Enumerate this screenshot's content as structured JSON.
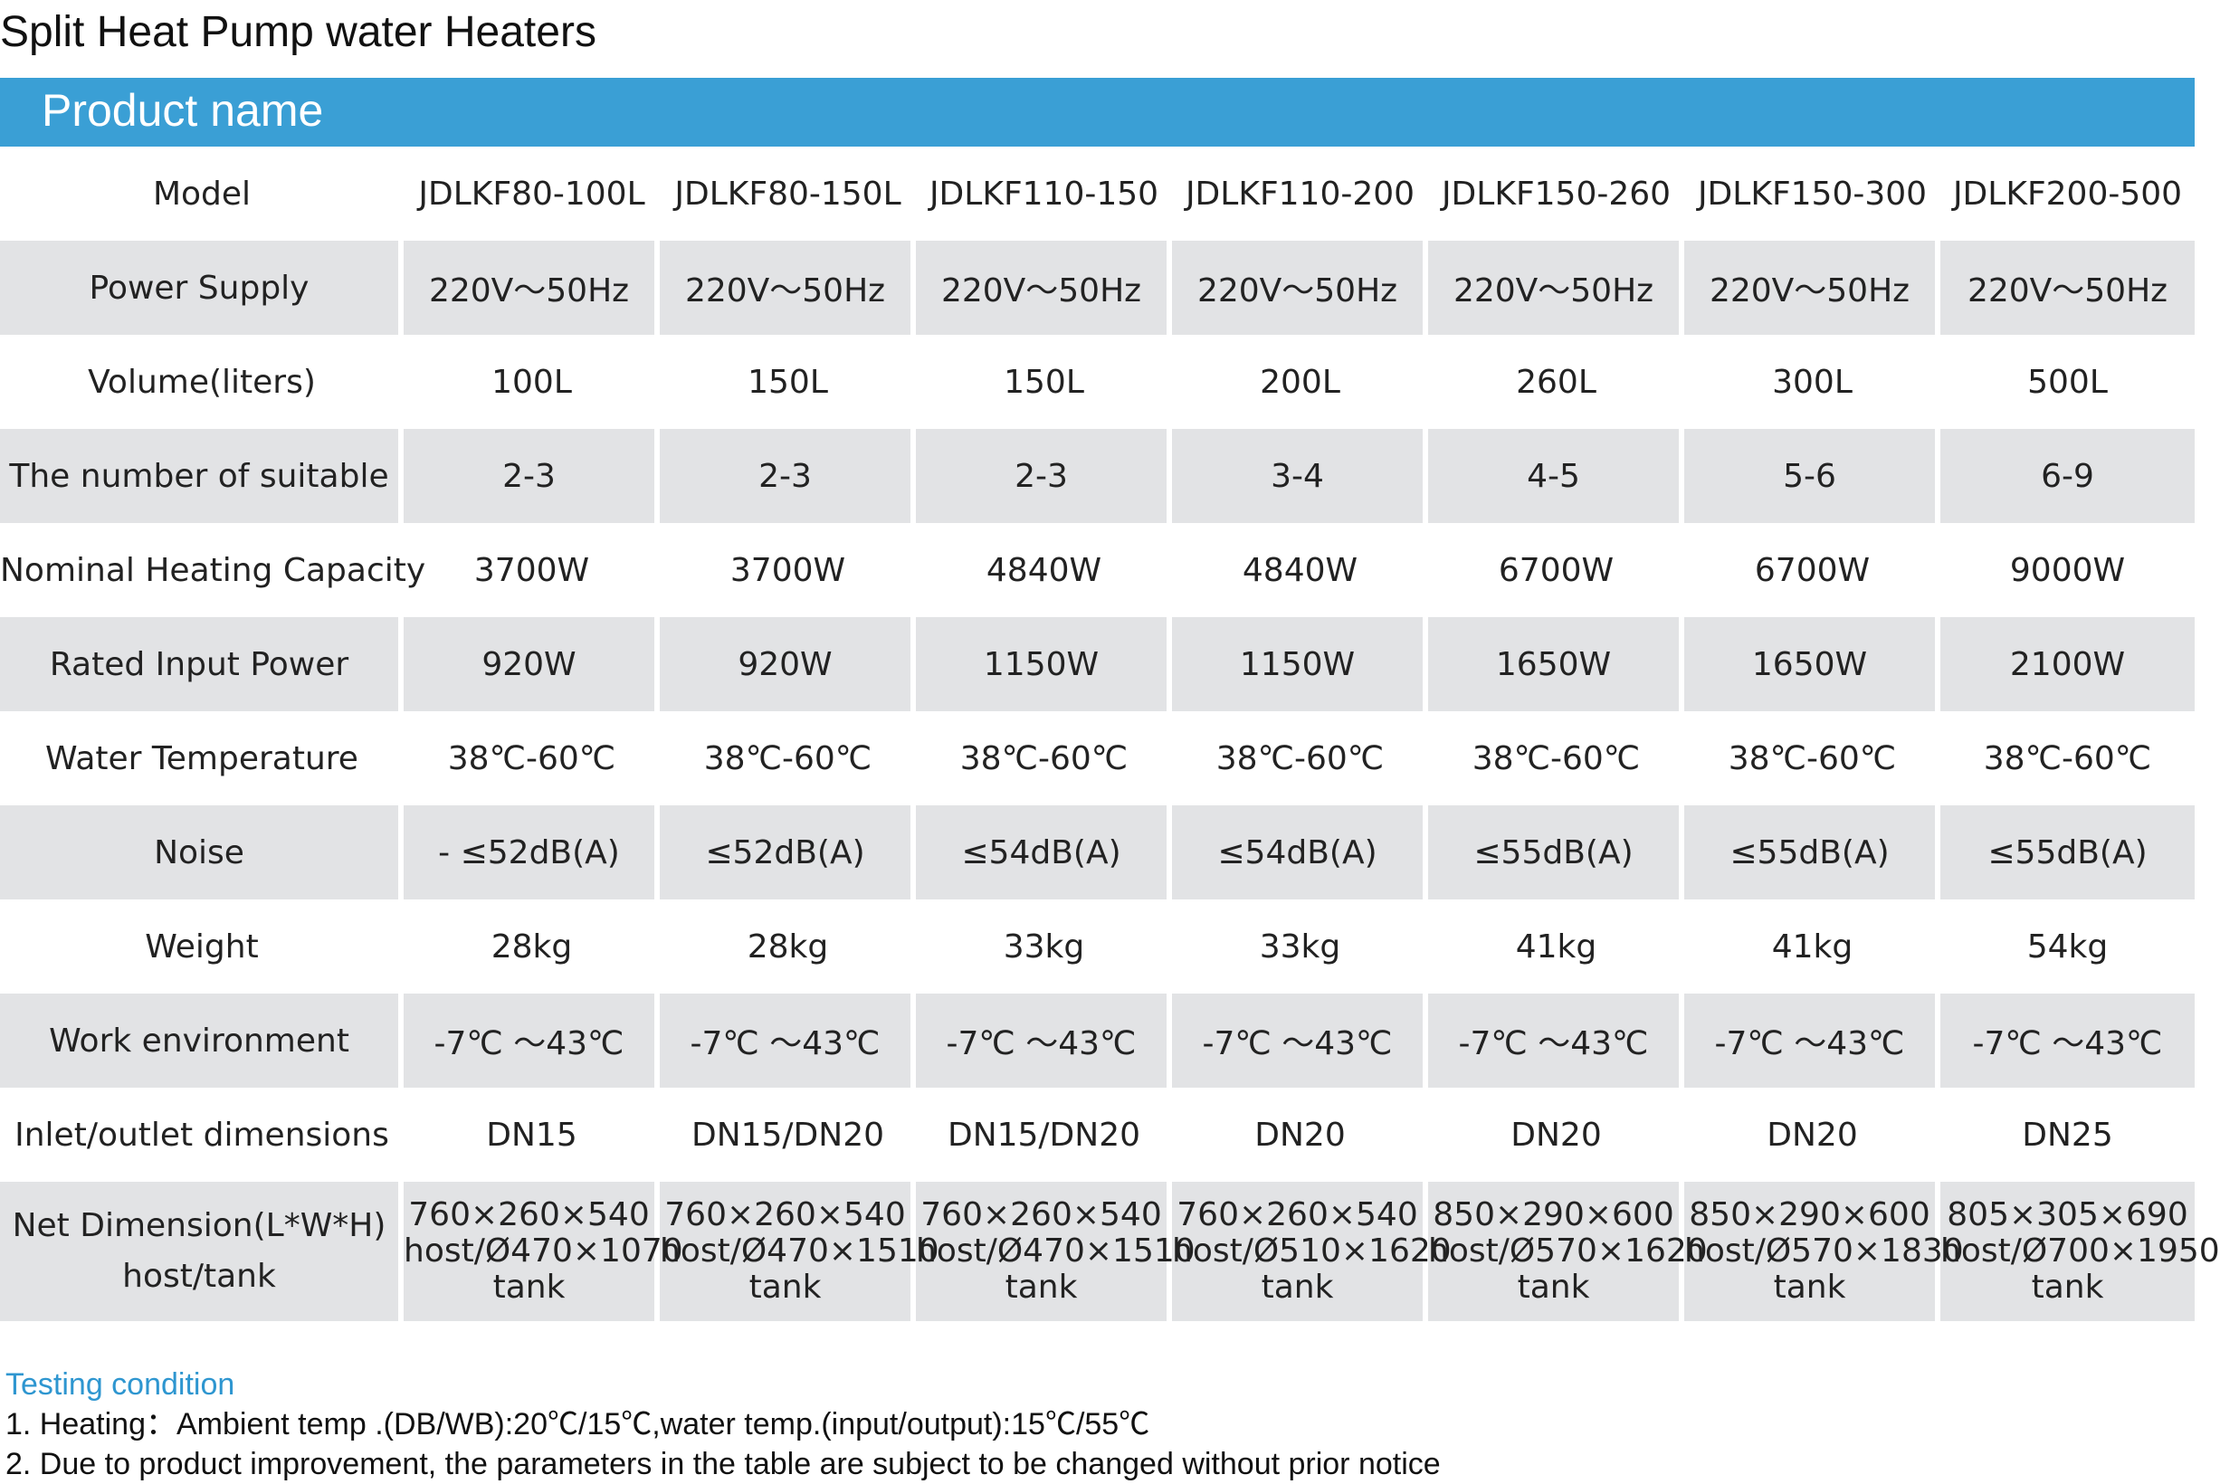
{
  "title": "Split Heat Pump water Heaters",
  "header_bar": {
    "label": "Product name"
  },
  "table": {
    "rows": [
      {
        "label": "Model",
        "values": [
          "JDLKF80-100L",
          "JDLKF80-150L",
          "JDLKF110-150",
          "JDLKF110-200",
          "JDLKF150-260",
          "JDLKF150-300",
          "JDLKF200-500"
        ]
      },
      {
        "label": "Power Supply",
        "values": [
          "220V～50Hz",
          "220V～50Hz",
          "220V～50Hz",
          "220V～50Hz",
          "220V～50Hz",
          "220V～50Hz",
          "220V～50Hz"
        ]
      },
      {
        "label": "Volume(liters)",
        "values": [
          "100L",
          "150L",
          "150L",
          "200L",
          "260L",
          "300L",
          "500L"
        ]
      },
      {
        "label": "The number of suitable",
        "values": [
          "2-3",
          "2-3",
          "2-3",
          "3-4",
          "4-5",
          "5-6",
          "6-9"
        ]
      },
      {
        "label": "Nominal Heating Capacity",
        "values": [
          "3700W",
          "3700W",
          "4840W",
          "4840W",
          "6700W",
          "6700W",
          "9000W"
        ]
      },
      {
        "label": "Rated Input Power",
        "values": [
          "920W",
          "920W",
          "1150W",
          "1150W",
          "1650W",
          "1650W",
          "2100W"
        ]
      },
      {
        "label": "Water Temperature",
        "values": [
          "38℃-60℃",
          "38℃-60℃",
          "38℃-60℃",
          "38℃-60℃",
          "38℃-60℃",
          "38℃-60℃",
          "38℃-60℃"
        ]
      },
      {
        "label": "Noise",
        "values": [
          "- ≤52dB(A)",
          "≤52dB(A)",
          "≤54dB(A)",
          "≤54dB(A)",
          "≤55dB(A)",
          "≤55dB(A)",
          "≤55dB(A)"
        ]
      },
      {
        "label": "Weight",
        "values": [
          "28kg",
          "28kg",
          "33kg",
          "33kg",
          "41kg",
          "41kg",
          "54kg"
        ]
      },
      {
        "label": "Work environment",
        "values": [
          "-7℃ ～43℃",
          "-7℃ ～43℃",
          "-7℃ ～43℃",
          "-7℃ ～43℃",
          "-7℃ ～43℃",
          "-7℃ ～43℃",
          "-7℃ ～43℃"
        ]
      },
      {
        "label": "Inlet/outlet dimensions",
        "values": [
          "DN15",
          "DN15/DN20",
          "DN15/DN20",
          "DN20",
          "DN20",
          "DN20",
          "DN25"
        ]
      }
    ],
    "dimension_row": {
      "label_line1": "Net Dimension(L*W*H)",
      "label_line2": "host/tank",
      "cells": [
        {
          "host": "760×260×540",
          "tank": "host/Ø470×1070",
          "suffix": "tank"
        },
        {
          "host": "760×260×540",
          "tank": "host/Ø470×1510",
          "suffix": "tank"
        },
        {
          "host": "760×260×540",
          "tank": "host/Ø470×1510",
          "suffix": "tank"
        },
        {
          "host": "760×260×540",
          "tank": "host/Ø510×1620",
          "suffix": "tank"
        },
        {
          "host": "850×290×600",
          "tank": "host/Ø570×1620",
          "suffix": "tank"
        },
        {
          "host": "850×290×600",
          "tank": "host/Ø570×1830",
          "suffix": "tank"
        },
        {
          "host": "805×305×690",
          "tank": "host/Ø700×1950",
          "suffix": "tank"
        }
      ]
    }
  },
  "notes": {
    "heading": "Testing condition",
    "lines": [
      "1. Heating：Ambient temp .(DB/WB):20℃/15℃,water temp.(input/output):15℃/55℃",
      "2. Due to product improvement, the parameters in the table are subject to be changed without prior notice"
    ]
  }
}
